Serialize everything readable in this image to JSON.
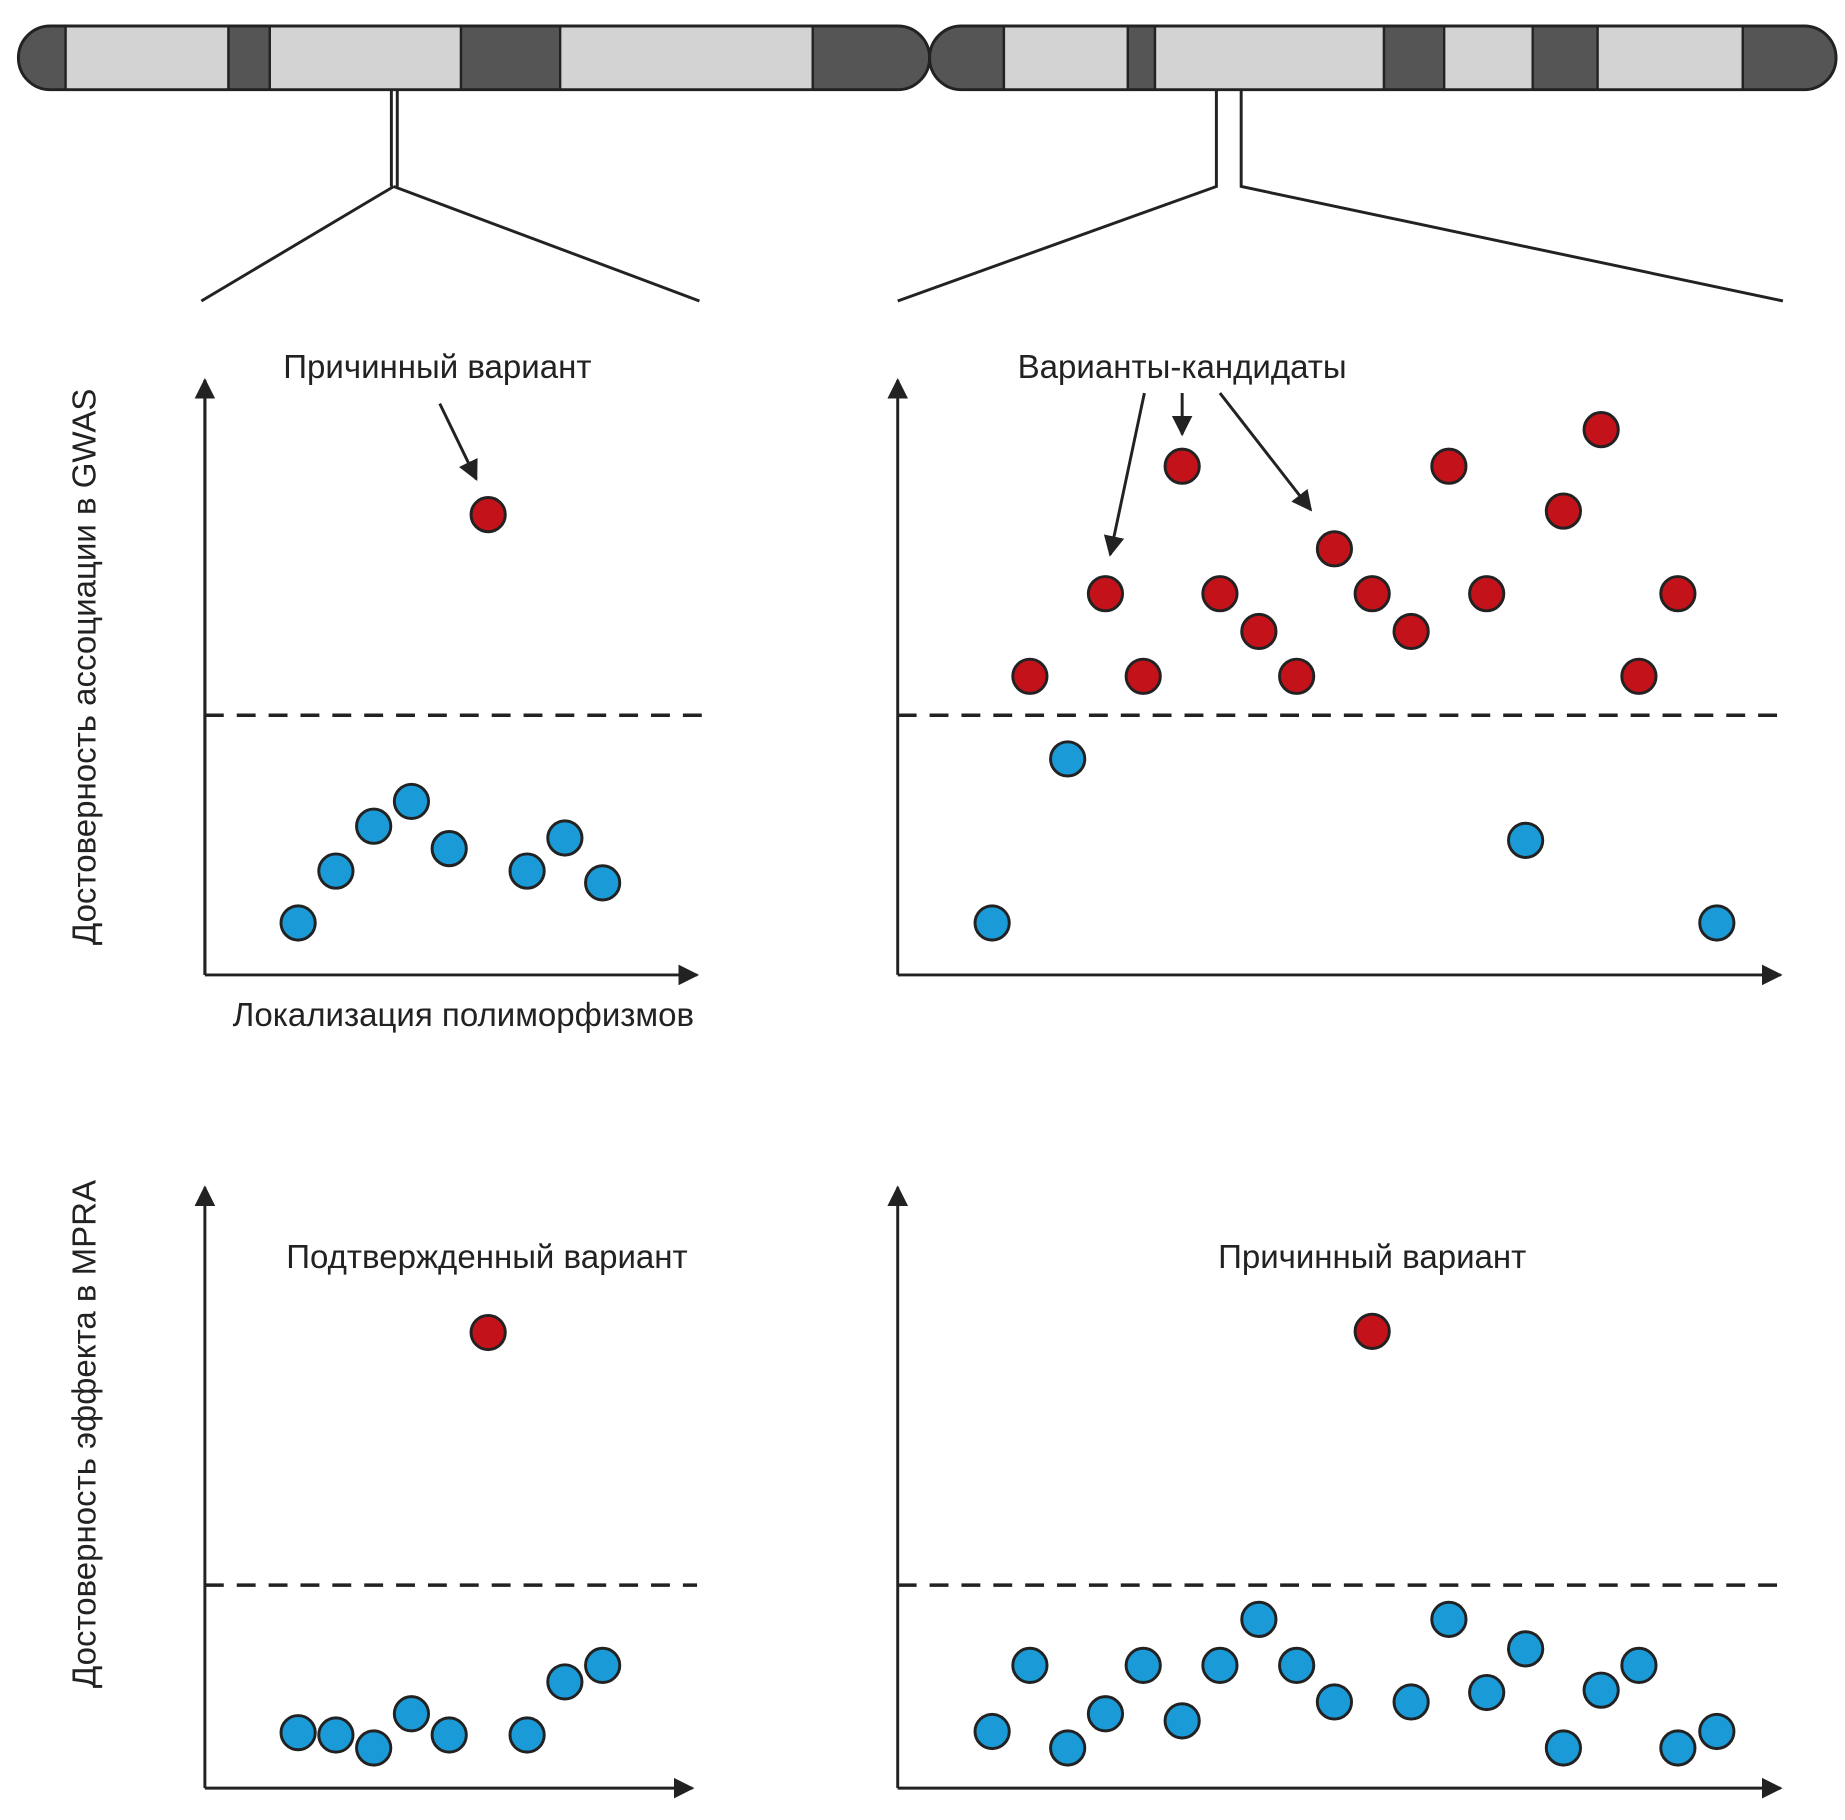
{
  "gwas": {
    "y_label": "Достоверность ассоциации в GWAS",
    "x_label": "Локализация полиморфизмов",
    "left_annotation": "Причинный вариант",
    "right_annotation": "Варианты-кандидаты"
  },
  "mpra": {
    "y_label": "Достоверность эффекта в MPRA",
    "left_annotation": "Подтвержденный вариант",
    "right_annotation": "Причинный вариант"
  }
}
